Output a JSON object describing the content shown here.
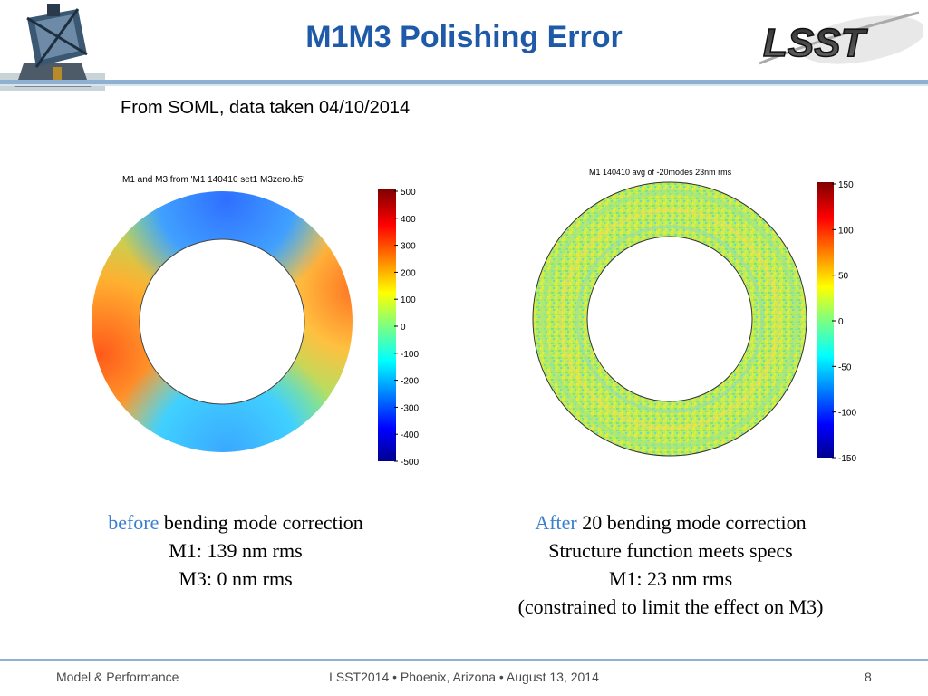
{
  "slide": {
    "title": "M1M3 Polishing Error",
    "subtitle": "From SOML, data taken 04/10/2014"
  },
  "logo": {
    "text": "LSST"
  },
  "plot_left": {
    "title": "M1 and M3 from 'M1 140410 set1 M3zero.h5'",
    "colorbar_ticks": [
      "500",
      "400",
      "300",
      "200",
      "100",
      "0",
      "-100",
      "-200",
      "-300",
      "-400",
      "-500"
    ]
  },
  "plot_right": {
    "title": "M1 140410 avg of -20modes 23nm rms",
    "colorbar_ticks": [
      "150",
      "100",
      "50",
      "0",
      "-50",
      "-100",
      "-150"
    ]
  },
  "caption_left": {
    "accent": "before",
    "line1_rest": " bending mode correction",
    "line2": "M1: 139 nm rms",
    "line3": "M3: 0 nm rms"
  },
  "caption_right": {
    "accent": "After",
    "line1_rest": " 20 bending mode correction",
    "line2": "Structure function meets specs",
    "line3": "M1: 23 nm rms",
    "line4": "(constrained to limit the effect on M3)"
  },
  "footer": {
    "left": "Model & Performance",
    "center": "LSST2014 • Phoenix, Arizona • August 13, 2014",
    "page": "8"
  },
  "colors": {
    "title": "#1f5aa8",
    "accent": "#3a7fcf",
    "rule": "#8fb0d0"
  }
}
